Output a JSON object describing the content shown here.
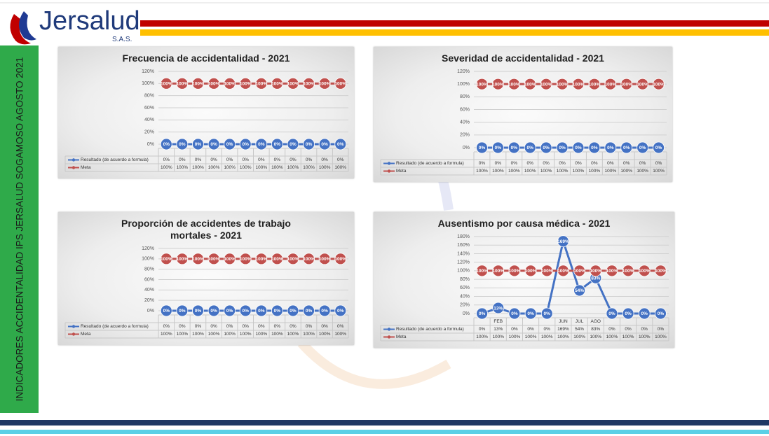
{
  "logo": {
    "name": "Jersalud",
    "suffix": "S.A.S."
  },
  "sidebar": "INDICADORES ACCIDENTALIDAD IPS JERSALUD SOGAMOSO  AGOSTO 2021",
  "chart_data": [
    {
      "type": "line",
      "title": "Frecuencia de accidentalidad -  2021",
      "categories": [
        null,
        null,
        null,
        null,
        null,
        null,
        null,
        null,
        null,
        null,
        null,
        null
      ],
      "series": [
        {
          "name": "Resultado (de acuerdo a formula)",
          "color": "#4472c4",
          "values": [
            0,
            0,
            0,
            0,
            0,
            0,
            0,
            0,
            0,
            0,
            0,
            0
          ],
          "value_labels": [
            "0%",
            "0%",
            "0%",
            "0%",
            "0%",
            "0%",
            "0%",
            "0%",
            "0%",
            "0%",
            "0%",
            "0%"
          ]
        },
        {
          "name": "Meta",
          "color": "#c0504d",
          "values": [
            100,
            100,
            100,
            100,
            100,
            100,
            100,
            100,
            100,
            100,
            100,
            100
          ],
          "value_labels": [
            "100%",
            "100%",
            "100%",
            "100%",
            "100%",
            "100%",
            "100%",
            "100%",
            "100%",
            "100%",
            "100%",
            "100%"
          ]
        }
      ],
      "ylim": [
        0,
        120
      ],
      "yticks": [
        {
          "value": 0,
          "label": "0%"
        },
        {
          "value": 20,
          "label": "20%"
        },
        {
          "value": 40,
          "label": "40%"
        },
        {
          "value": 60,
          "label": "60%"
        },
        {
          "value": 80,
          "label": "80%"
        },
        {
          "value": 100,
          "label": "100%"
        },
        {
          "value": 120,
          "label": "120%"
        }
      ],
      "grid": true
    },
    {
      "type": "line",
      "title": "Severidad de accidentalidad -  2021",
      "categories": [
        null,
        null,
        null,
        null,
        null,
        null,
        null,
        null,
        null,
        null,
        null,
        null
      ],
      "series": [
        {
          "name": "Resultado (de acuerdo a formula)",
          "color": "#4472c4",
          "values": [
            0,
            0,
            0,
            0,
            0,
            0,
            0,
            0,
            0,
            0,
            0,
            0
          ],
          "value_labels": [
            "0%",
            "0%",
            "0%",
            "0%",
            "0%",
            "0%",
            "0%",
            "0%",
            "0%",
            "0%",
            "0%",
            "0%"
          ]
        },
        {
          "name": "Meta",
          "color": "#c0504d",
          "values": [
            100,
            100,
            100,
            100,
            100,
            100,
            100,
            100,
            100,
            100,
            100,
            100
          ],
          "value_labels": [
            "100%",
            "100%",
            "100%",
            "100%",
            "100%",
            "100%",
            "100%",
            "100%",
            "100%",
            "100%",
            "100%",
            "100%"
          ]
        }
      ],
      "ylim": [
        0,
        120
      ],
      "yticks": [
        {
          "value": 0,
          "label": "0%"
        },
        {
          "value": 20,
          "label": "20%"
        },
        {
          "value": 40,
          "label": "40%"
        },
        {
          "value": 60,
          "label": "60%"
        },
        {
          "value": 80,
          "label": "80%"
        },
        {
          "value": 100,
          "label": "100%"
        },
        {
          "value": 120,
          "label": "120%"
        }
      ],
      "grid": true
    },
    {
      "type": "line",
      "title": "Proporción de accidentes de trabajo mortales   -  2021",
      "categories": [
        null,
        null,
        null,
        null,
        null,
        null,
        null,
        null,
        null,
        null,
        null,
        null
      ],
      "series": [
        {
          "name": "Resultado (de acuerdo a formula)",
          "color": "#4472c4",
          "values": [
            0,
            0,
            0,
            0,
            0,
            0,
            0,
            0,
            0,
            0,
            0,
            0
          ],
          "value_labels": [
            "0%",
            "0%",
            "0%",
            "0%",
            "0%",
            "0%",
            "0%",
            "0%",
            "0%",
            "0%",
            "0%",
            "0%"
          ]
        },
        {
          "name": "Meta",
          "color": "#c0504d",
          "values": [
            100,
            100,
            100,
            100,
            100,
            100,
            100,
            100,
            100,
            100,
            100,
            100
          ],
          "value_labels": [
            "100%",
            "100%",
            "100%",
            "100%",
            "100%",
            "100%",
            "100%",
            "100%",
            "100%",
            "100%",
            "100%",
            "100%"
          ]
        }
      ],
      "ylim": [
        0,
        120
      ],
      "yticks": [
        {
          "value": 0,
          "label": "0%"
        },
        {
          "value": 20,
          "label": "20%"
        },
        {
          "value": 40,
          "label": "40%"
        },
        {
          "value": 60,
          "label": "60%"
        },
        {
          "value": 80,
          "label": "80%"
        },
        {
          "value": 100,
          "label": "100%"
        },
        {
          "value": 120,
          "label": "120%"
        }
      ],
      "grid": true
    },
    {
      "type": "line",
      "title": "Ausentismo por causa médica -  2021",
      "categories": [
        null,
        "FEB",
        null,
        null,
        null,
        "JUN",
        "JUL",
        "AGO",
        null,
        null,
        null,
        null
      ],
      "series": [
        {
          "name": "Resultado (de acuerdo a formula)",
          "color": "#4472c4",
          "values": [
            0,
            13,
            0,
            0,
            0,
            169,
            54,
            83,
            0,
            0,
            0,
            0
          ],
          "value_labels": [
            "0%",
            "13%",
            "0%",
            "0%",
            "0%",
            "169%",
            "54%",
            "83%",
            "0%",
            "0%",
            "0%",
            "0%"
          ]
        },
        {
          "name": "Meta",
          "color": "#c0504d",
          "values": [
            100,
            100,
            100,
            100,
            100,
            100,
            100,
            100,
            100,
            100,
            100,
            100
          ],
          "value_labels": [
            "100%",
            "100%",
            "100%",
            "100%",
            "100%",
            "100%",
            "100%",
            "100%",
            "100%",
            "100%",
            "100%",
            "100%"
          ]
        }
      ],
      "ylim": [
        0,
        180
      ],
      "yticks": [
        {
          "value": 0,
          "label": "0%"
        },
        {
          "value": 20,
          "label": "20%"
        },
        {
          "value": 40,
          "label": "40%"
        },
        {
          "value": 60,
          "label": "60%"
        },
        {
          "value": 80,
          "label": "80%"
        },
        {
          "value": 100,
          "label": "100%"
        },
        {
          "value": 120,
          "label": "120%"
        },
        {
          "value": 140,
          "label": "140%"
        },
        {
          "value": 160,
          "label": "160%"
        },
        {
          "value": 180,
          "label": "180%"
        }
      ],
      "grid": true
    }
  ]
}
